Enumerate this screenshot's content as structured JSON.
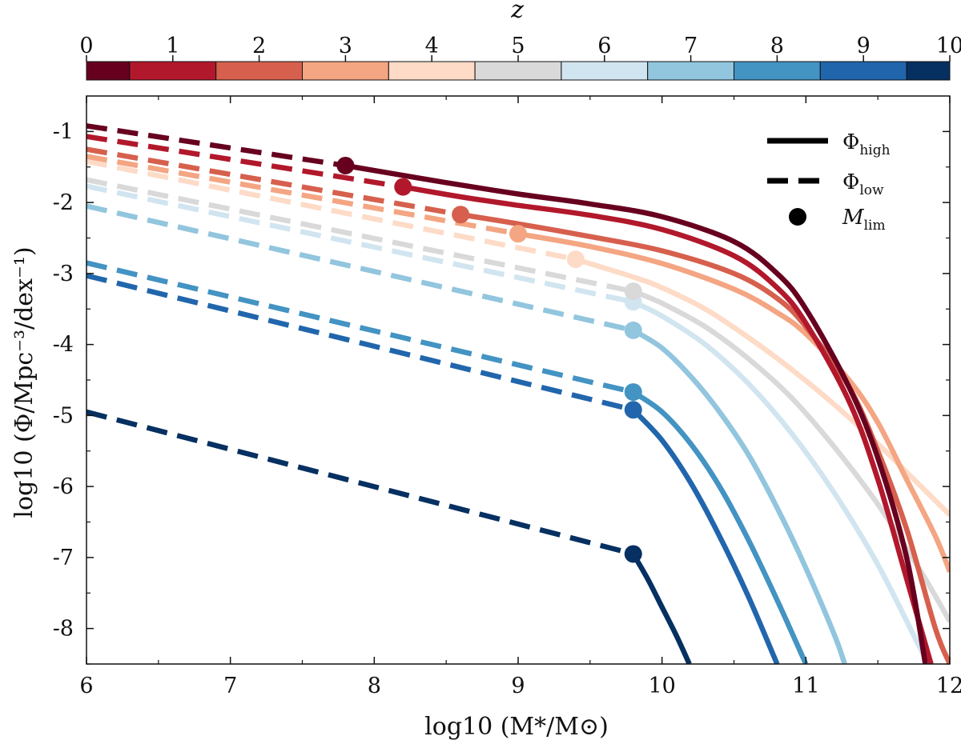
{
  "chart_data": {
    "type": "line",
    "xlabel": "log10 (M*/M⊙)",
    "ylabel": "log10 (Φ/Mpc⁻³/dex⁻¹)",
    "xlim": [
      6,
      12
    ],
    "ylim": [
      -8.5,
      -0.5
    ],
    "xticks": [
      6,
      7,
      8,
      9,
      10,
      11,
      12
    ],
    "yticks": [
      -1,
      -2,
      -3,
      -4,
      -5,
      -6,
      -7,
      -8
    ],
    "ytick_labels": [
      "-1",
      "-2",
      "-3",
      "-4",
      "-5",
      "-6",
      "-7",
      "-8"
    ],
    "colorbar": {
      "label": "z",
      "ticks": [
        0,
        1,
        2,
        3,
        4,
        5,
        6,
        7,
        8,
        9,
        10
      ],
      "tick_labels": [
        "0",
        "1",
        "2",
        "3",
        "4",
        "5",
        "6",
        "7",
        "8",
        "9",
        "10"
      ],
      "colors": [
        "#67001f",
        "#b2182b",
        "#d6604d",
        "#f4a582",
        "#fddbc7",
        "#d9d9d9",
        "#d1e5f0",
        "#92c5de",
        "#4393c3",
        "#2166ac",
        "#053061"
      ]
    },
    "legend": {
      "position": "top-right",
      "entries": [
        {
          "style": "solid",
          "base": "Φ",
          "sub": "high"
        },
        {
          "style": "dashed",
          "base": "Φ",
          "sub": "low"
        },
        {
          "style": "marker",
          "base": "M",
          "sub": "lim"
        }
      ]
    },
    "series": [
      {
        "name": "z=0",
        "color": "#67001f",
        "m_lim": 7.8,
        "low": [
          [
            6.0,
            -0.92
          ],
          [
            7.8,
            -1.48
          ]
        ],
        "high": [
          [
            7.8,
            -1.48
          ],
          [
            8.5,
            -1.72
          ],
          [
            9.0,
            -1.88
          ],
          [
            9.5,
            -2.02
          ],
          [
            10.0,
            -2.2
          ],
          [
            10.5,
            -2.55
          ],
          [
            10.8,
            -3.0
          ],
          [
            11.0,
            -3.5
          ],
          [
            11.3,
            -4.6
          ],
          [
            11.5,
            -5.6
          ],
          [
            11.7,
            -7.0
          ],
          [
            11.83,
            -8.5
          ]
        ]
      },
      {
        "name": "z=1",
        "color": "#b2182b",
        "m_lim": 8.2,
        "low": [
          [
            6.0,
            -1.07
          ],
          [
            8.2,
            -1.78
          ]
        ],
        "high": [
          [
            8.2,
            -1.78
          ],
          [
            8.6,
            -1.92
          ],
          [
            9.0,
            -2.04
          ],
          [
            9.5,
            -2.18
          ],
          [
            10.0,
            -2.38
          ],
          [
            10.5,
            -2.75
          ],
          [
            10.8,
            -3.2
          ],
          [
            11.0,
            -3.7
          ],
          [
            11.3,
            -4.8
          ],
          [
            11.5,
            -5.9
          ],
          [
            11.7,
            -7.3
          ],
          [
            11.87,
            -8.5
          ]
        ]
      },
      {
        "name": "z=2",
        "color": "#d6604d",
        "m_lim": 8.6,
        "low": [
          [
            6.0,
            -1.25
          ],
          [
            8.6,
            -2.17
          ]
        ],
        "high": [
          [
            8.6,
            -2.17
          ],
          [
            9.0,
            -2.3
          ],
          [
            9.5,
            -2.48
          ],
          [
            10.0,
            -2.68
          ],
          [
            10.5,
            -3.0
          ],
          [
            10.8,
            -3.35
          ],
          [
            11.0,
            -3.75
          ],
          [
            11.3,
            -4.6
          ],
          [
            11.5,
            -5.5
          ],
          [
            11.7,
            -6.6
          ],
          [
            11.9,
            -8.0
          ],
          [
            12.0,
            -8.5
          ]
        ]
      },
      {
        "name": "z=3",
        "color": "#f4a582",
        "m_lim": 9.0,
        "low": [
          [
            6.0,
            -1.35
          ],
          [
            9.0,
            -2.44
          ]
        ],
        "high": [
          [
            9.0,
            -2.44
          ],
          [
            9.5,
            -2.62
          ],
          [
            10.0,
            -2.86
          ],
          [
            10.5,
            -3.22
          ],
          [
            10.8,
            -3.55
          ],
          [
            11.0,
            -3.85
          ],
          [
            11.3,
            -4.5
          ],
          [
            11.5,
            -5.1
          ],
          [
            11.7,
            -5.9
          ],
          [
            11.9,
            -6.7
          ],
          [
            12.0,
            -7.2
          ]
        ]
      },
      {
        "name": "z=4",
        "color": "#fddbc7",
        "m_lim": 9.4,
        "low": [
          [
            6.0,
            -1.42
          ],
          [
            9.4,
            -2.8
          ]
        ],
        "high": [
          [
            9.4,
            -2.8
          ],
          [
            9.8,
            -3.05
          ],
          [
            10.0,
            -3.2
          ],
          [
            10.3,
            -3.5
          ],
          [
            10.6,
            -3.9
          ],
          [
            10.9,
            -4.35
          ],
          [
            11.2,
            -4.85
          ],
          [
            11.5,
            -5.4
          ],
          [
            11.8,
            -6.0
          ],
          [
            12.0,
            -6.4
          ]
        ]
      },
      {
        "name": "z=5",
        "color": "#d9d9d9",
        "m_lim": 9.8,
        "low": [
          [
            6.0,
            -1.68
          ],
          [
            9.8,
            -3.25
          ]
        ],
        "high": [
          [
            9.8,
            -3.25
          ],
          [
            10.0,
            -3.42
          ],
          [
            10.3,
            -3.75
          ],
          [
            10.6,
            -4.2
          ],
          [
            10.9,
            -4.75
          ],
          [
            11.2,
            -5.45
          ],
          [
            11.5,
            -6.25
          ],
          [
            11.8,
            -7.2
          ],
          [
            12.0,
            -7.9
          ]
        ]
      },
      {
        "name": "z=6",
        "color": "#d1e5f0",
        "m_lim": 9.8,
        "low": [
          [
            6.0,
            -1.77
          ],
          [
            9.8,
            -3.4
          ]
        ],
        "high": [
          [
            9.8,
            -3.4
          ],
          [
            10.0,
            -3.6
          ],
          [
            10.3,
            -4.0
          ],
          [
            10.6,
            -4.55
          ],
          [
            10.9,
            -5.25
          ],
          [
            11.2,
            -6.1
          ],
          [
            11.5,
            -7.1
          ],
          [
            11.8,
            -8.3
          ],
          [
            11.86,
            -8.5
          ]
        ]
      },
      {
        "name": "z=7",
        "color": "#92c5de",
        "m_lim": 9.8,
        "low": [
          [
            6.0,
            -2.05
          ],
          [
            9.8,
            -3.8
          ]
        ],
        "high": [
          [
            9.8,
            -3.8
          ],
          [
            10.0,
            -4.05
          ],
          [
            10.2,
            -4.45
          ],
          [
            10.4,
            -4.95
          ],
          [
            10.6,
            -5.55
          ],
          [
            10.8,
            -6.3
          ],
          [
            11.0,
            -7.15
          ],
          [
            11.2,
            -8.1
          ],
          [
            11.27,
            -8.5
          ]
        ]
      },
      {
        "name": "z=8",
        "color": "#4393c3",
        "m_lim": 9.8,
        "low": [
          [
            6.0,
            -2.85
          ],
          [
            9.8,
            -4.67
          ]
        ],
        "high": [
          [
            9.8,
            -4.67
          ],
          [
            10.0,
            -4.95
          ],
          [
            10.2,
            -5.4
          ],
          [
            10.4,
            -6.0
          ],
          [
            10.6,
            -6.75
          ],
          [
            10.8,
            -7.6
          ],
          [
            11.0,
            -8.5
          ]
        ]
      },
      {
        "name": "z=9",
        "color": "#2166ac",
        "m_lim": 9.8,
        "low": [
          [
            6.0,
            -3.03
          ],
          [
            9.8,
            -4.92
          ]
        ],
        "high": [
          [
            9.8,
            -4.92
          ],
          [
            10.0,
            -5.35
          ],
          [
            10.2,
            -5.95
          ],
          [
            10.4,
            -6.7
          ],
          [
            10.6,
            -7.55
          ],
          [
            10.8,
            -8.5
          ]
        ]
      },
      {
        "name": "z=10",
        "color": "#053061",
        "m_lim": 9.8,
        "low": [
          [
            6.0,
            -4.95
          ],
          [
            9.8,
            -6.95
          ]
        ],
        "high": [
          [
            9.8,
            -6.95
          ],
          [
            9.9,
            -7.3
          ],
          [
            10.0,
            -7.7
          ],
          [
            10.1,
            -8.1
          ],
          [
            10.19,
            -8.5
          ]
        ]
      }
    ]
  }
}
